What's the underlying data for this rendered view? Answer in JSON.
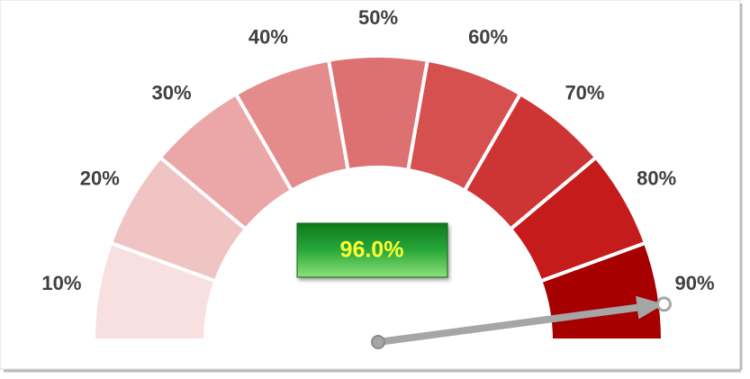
{
  "chart_data": {
    "type": "gauge",
    "categories": [
      "10%",
      "20%",
      "30%",
      "40%",
      "50%",
      "60%",
      "70%",
      "80%",
      "90%"
    ],
    "colors": [
      "#f8e0e0",
      "#f1c4c4",
      "#eba7a7",
      "#e48c8c",
      "#dd7171",
      "#d65050",
      "#cf3434",
      "#c61b1b",
      "#a60000"
    ],
    "ylim": [
      0,
      100
    ],
    "value": 96,
    "value_label": "96.0%",
    "needle_color": "#a6a6a6",
    "value_box_color": "#1a9a2a"
  }
}
